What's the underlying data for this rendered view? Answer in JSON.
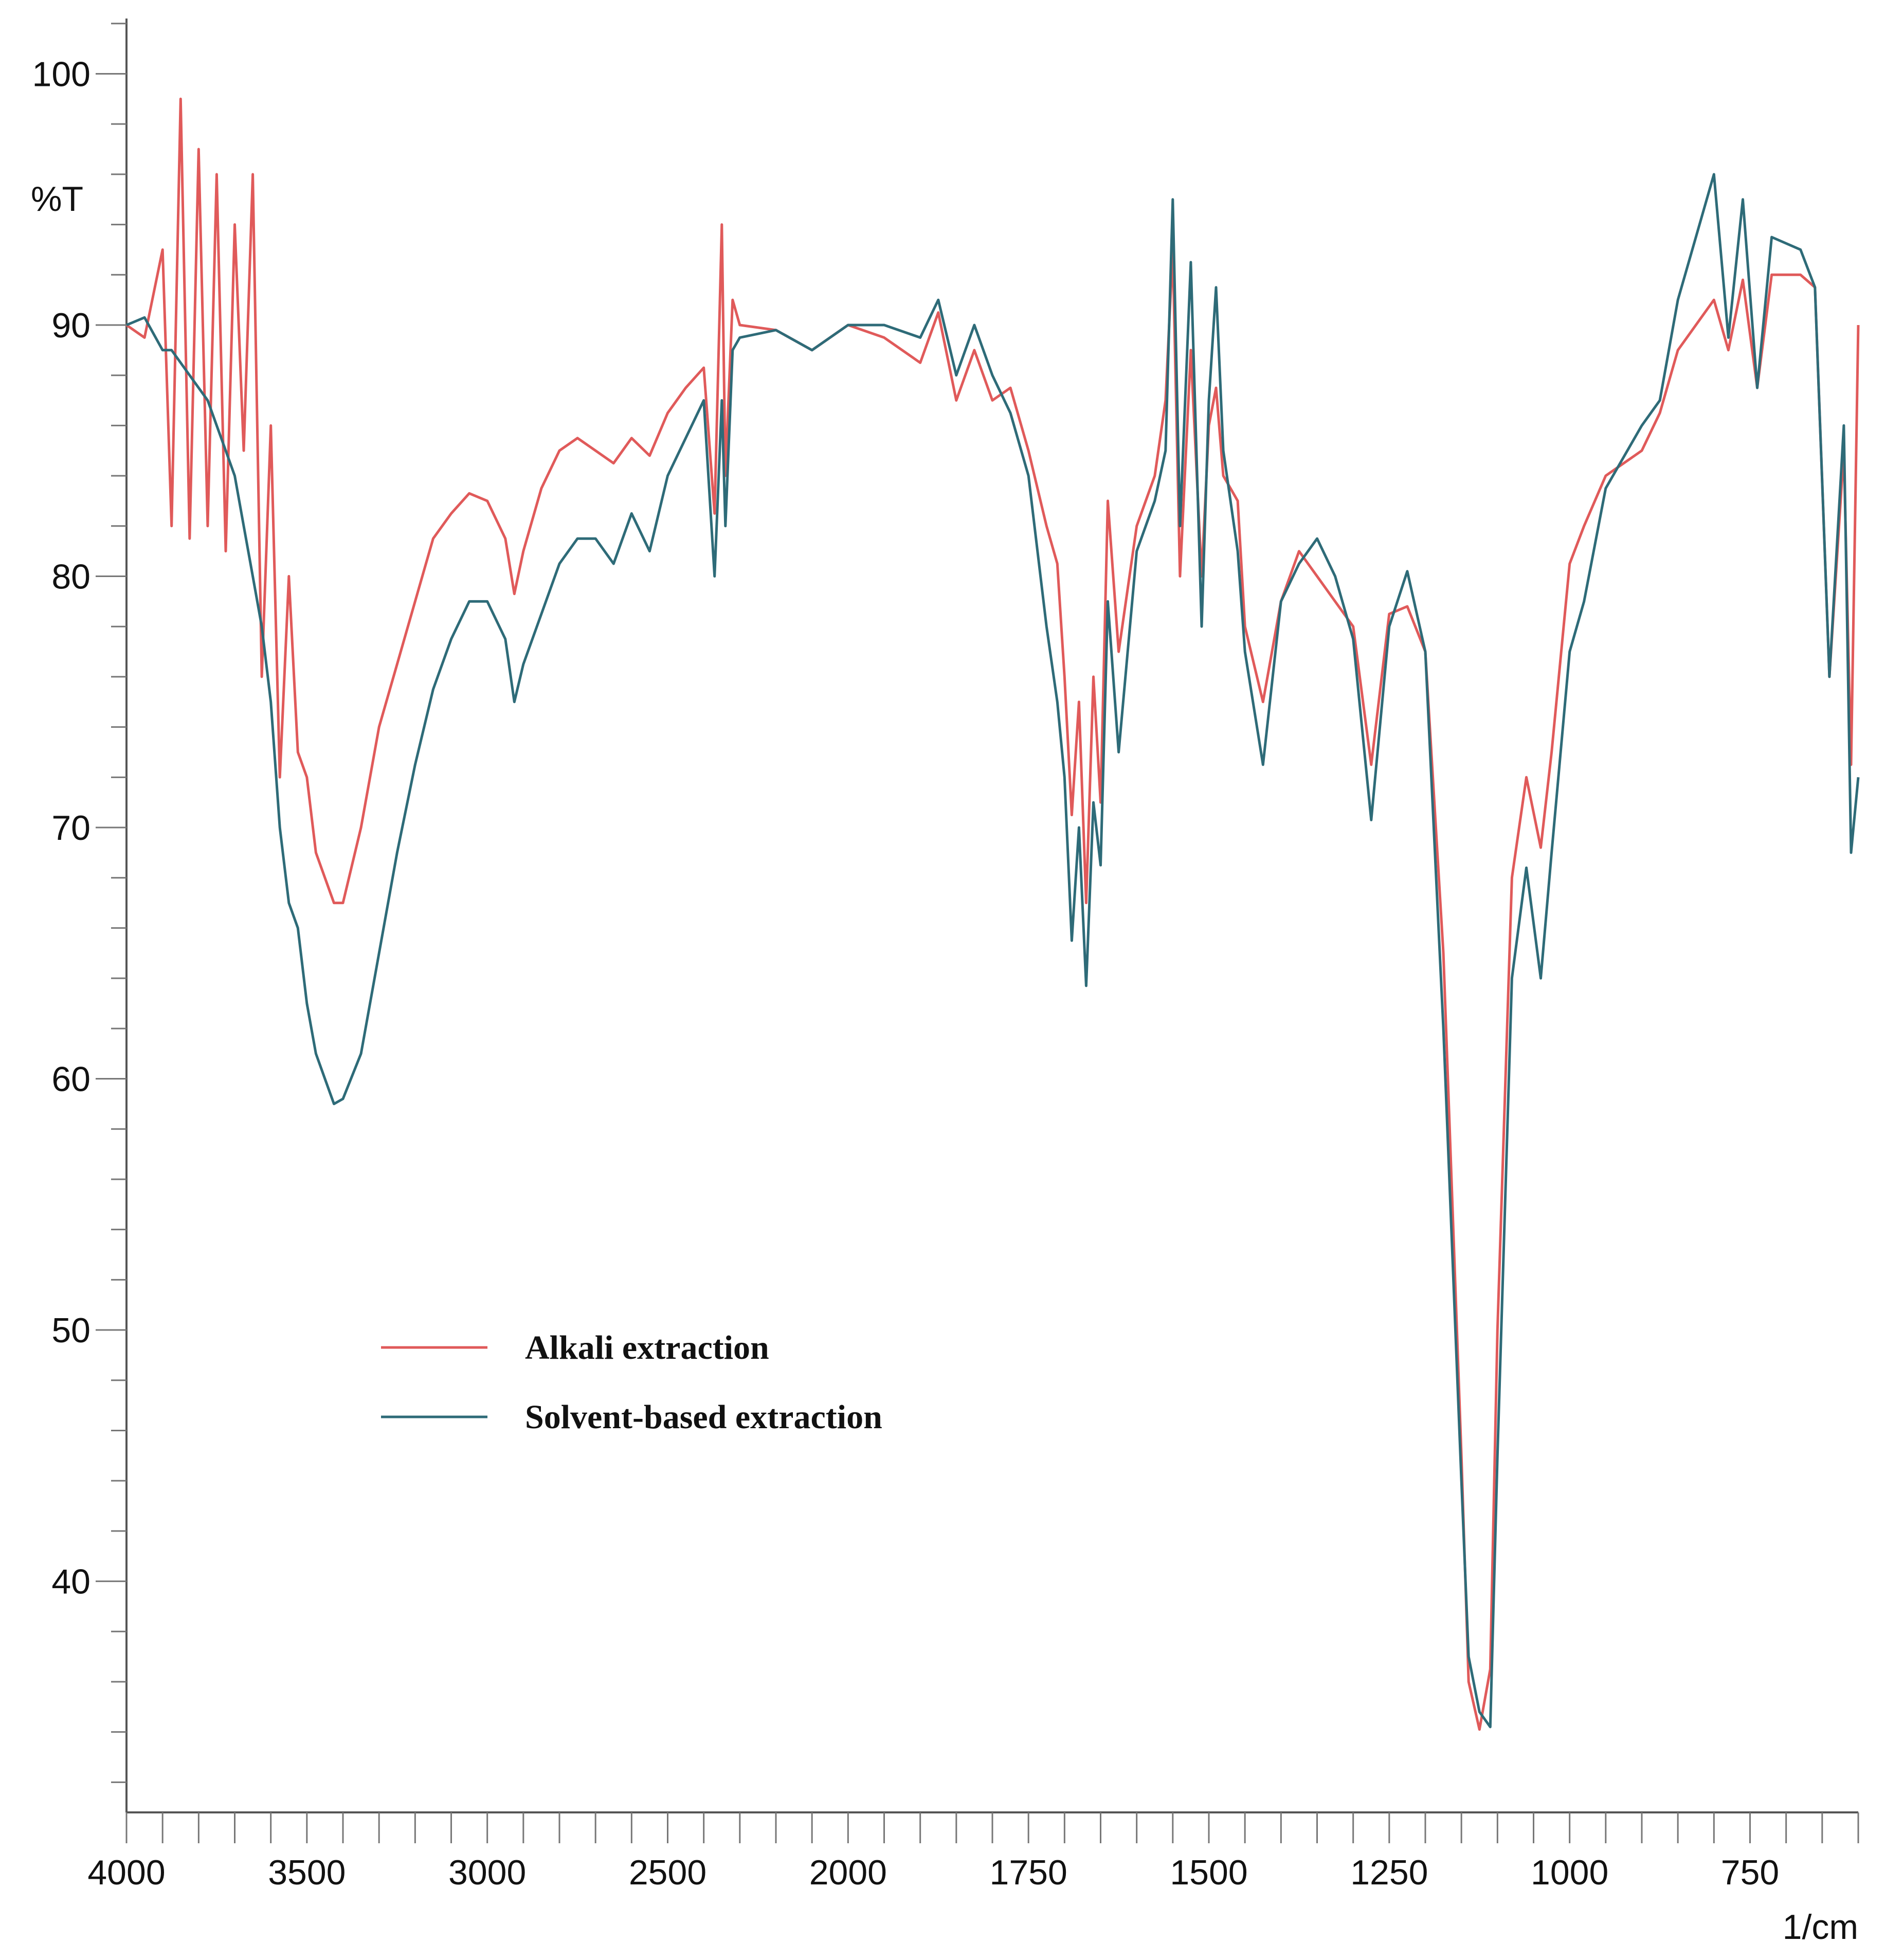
{
  "chart_data": {
    "type": "line",
    "xlabel": "1/cm",
    "ylabel": "%T",
    "xlim": [
      4000,
      600
    ],
    "ylim": [
      30.8,
      102.2
    ],
    "x_scale_break": 2000,
    "x_scale_factor_below_break": 2,
    "xticks": [
      4000,
      3500,
      3000,
      2500,
      2000,
      1750,
      1500,
      1250,
      1000,
      750
    ],
    "xminorticks": [
      3900,
      3800,
      3700,
      3600,
      3400,
      3300,
      3200,
      3100,
      2900,
      2800,
      2700,
      2600,
      2400,
      2300,
      2200,
      2100,
      1950,
      1900,
      1850,
      1800,
      1700,
      1650,
      1600,
      1550,
      1450,
      1400,
      1350,
      1300,
      1200,
      1150,
      1100,
      1050,
      950,
      900,
      850,
      800,
      700,
      650,
      600
    ],
    "yticks": [
      40,
      50,
      60,
      70,
      80,
      90,
      100
    ],
    "yminorticks": [
      32,
      34,
      36,
      38,
      42,
      44,
      46,
      48,
      52,
      54,
      56,
      58,
      62,
      64,
      66,
      68,
      72,
      74,
      76,
      78,
      82,
      84,
      86,
      88,
      92,
      94,
      96,
      98,
      102
    ],
    "legend_position": "center left",
    "x": [
      4000,
      3950,
      3900,
      3875,
      3850,
      3825,
      3800,
      3775,
      3750,
      3725,
      3700,
      3675,
      3650,
      3625,
      3600,
      3575,
      3550,
      3525,
      3500,
      3475,
      3450,
      3425,
      3400,
      3350,
      3300,
      3250,
      3200,
      3150,
      3100,
      3050,
      3000,
      2950,
      2925,
      2900,
      2850,
      2800,
      2750,
      2700,
      2650,
      2600,
      2550,
      2500,
      2450,
      2400,
      2370,
      2350,
      2340,
      2320,
      2300,
      2200,
      2100,
      2000,
      1950,
      1900,
      1875,
      1850,
      1825,
      1800,
      1775,
      1750,
      1725,
      1710,
      1700,
      1690,
      1680,
      1670,
      1660,
      1650,
      1640,
      1625,
      1600,
      1575,
      1560,
      1550,
      1540,
      1525,
      1510,
      1500,
      1490,
      1480,
      1460,
      1450,
      1425,
      1400,
      1375,
      1350,
      1325,
      1300,
      1275,
      1250,
      1225,
      1200,
      1175,
      1150,
      1140,
      1125,
      1110,
      1100,
      1080,
      1060,
      1040,
      1025,
      1000,
      980,
      950,
      900,
      875,
      850,
      800,
      780,
      760,
      740,
      720,
      680,
      660,
      640,
      620,
      610,
      600
    ],
    "series": [
      {
        "name": "Alkali extraction",
        "color": "#e05a5a",
        "values": [
          90,
          89.5,
          93,
          82,
          99,
          81.5,
          97,
          82,
          96,
          81,
          94,
          85,
          96,
          76,
          86,
          72,
          80,
          73,
          72,
          69,
          68,
          67,
          67,
          70,
          74,
          76.5,
          79,
          81.5,
          82.5,
          83.3,
          83,
          81.5,
          79.3,
          81,
          83.5,
          85,
          85.5,
          85,
          84.5,
          85.5,
          84.8,
          86.5,
          87.5,
          88.3,
          82.5,
          94,
          84,
          91,
          90,
          89.8,
          89,
          90,
          89.5,
          88.5,
          90.5,
          87,
          89,
          87,
          87.5,
          85,
          82,
          80.5,
          76,
          70.5,
          75,
          67,
          76,
          71,
          83,
          77,
          82,
          84,
          87,
          93,
          80,
          89,
          80,
          86,
          87.5,
          84,
          83,
          78,
          75,
          79,
          81,
          80,
          79,
          78,
          72.5,
          78.5,
          78.8,
          77,
          65,
          45,
          36,
          34.1,
          36.5,
          50,
          68,
          72,
          69.2,
          73,
          80.5,
          82,
          84,
          85,
          86.5,
          89,
          91,
          89,
          91.8,
          87.5,
          92,
          92,
          91.5,
          76,
          85,
          72.5,
          90
        ]
      },
      {
        "name": "Solvent-based extraction",
        "color": "#2e6b78",
        "values": [
          90,
          90.3,
          89,
          89,
          88.5,
          88,
          87.5,
          87,
          86,
          85,
          84,
          82,
          80,
          78,
          75,
          70,
          67,
          66,
          63,
          61,
          60,
          59,
          59.2,
          61,
          65,
          69,
          72.5,
          75.5,
          77.5,
          79,
          79,
          77.5,
          75,
          76.5,
          78.5,
          80.5,
          81.5,
          81.5,
          80.5,
          82.5,
          81,
          84,
          85.5,
          87,
          80,
          87,
          82,
          89,
          89.5,
          89.8,
          89,
          90,
          90,
          89.5,
          91,
          88,
          90,
          88,
          86.5,
          84,
          78,
          75,
          72,
          65.5,
          70,
          63.7,
          71,
          68.5,
          79,
          73,
          81,
          83,
          85,
          95,
          82,
          92.5,
          78,
          87,
          91.5,
          85,
          81,
          77,
          72.5,
          79,
          80.5,
          81.5,
          80,
          77.5,
          70.3,
          78,
          80.2,
          77,
          62,
          44,
          37,
          34.8,
          34.2,
          45,
          64,
          68.4,
          64,
          69,
          77,
          79,
          83.5,
          86,
          87,
          91,
          96,
          89.5,
          95,
          87.5,
          93.5,
          93,
          91.5,
          76,
          86,
          69,
          72
        ]
      }
    ]
  }
}
